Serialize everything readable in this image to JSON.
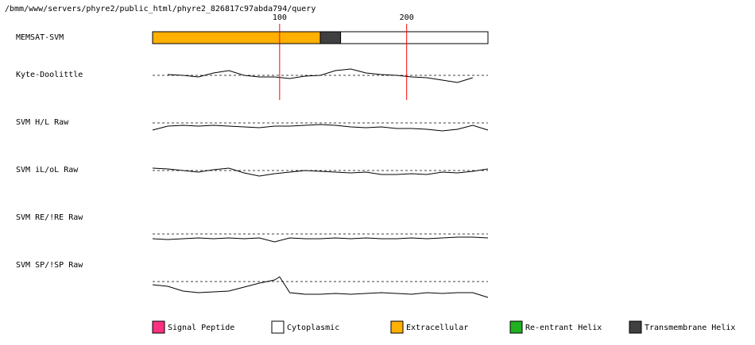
{
  "header": {
    "path": "/bmm/www/servers/phyre2/public_html/phyre2_826817c97abda794/query"
  },
  "axis": {
    "xlim": [
      0,
      264
    ],
    "ticks": [
      100,
      200
    ],
    "tick_color": "#ff0000"
  },
  "topology": {
    "label": "MEMSAT-SVM",
    "segments": [
      {
        "type": "Extracellular",
        "start": 0,
        "end": 132,
        "color": "#ffb000"
      },
      {
        "type": "Transmembrane Helix",
        "start": 132,
        "end": 148,
        "color": "#404040"
      },
      {
        "type": "Cytoplasmic",
        "start": 148,
        "end": 264,
        "color": "#ffffff"
      }
    ]
  },
  "tracks": [
    {
      "label": "Kyte-Doolittle",
      "x": [
        12,
        24,
        36,
        48,
        60,
        72,
        84,
        96,
        108,
        120,
        132,
        144,
        156,
        168,
        180,
        192,
        204,
        216,
        228,
        240,
        252
      ],
      "values": [
        1,
        0,
        -2,
        3,
        6,
        0,
        -2,
        -2,
        -4,
        -1,
        0,
        6,
        8,
        3,
        1,
        0,
        -2,
        -3,
        -6,
        -9,
        -3
      ]
    },
    {
      "label": "SVM H/L Raw",
      "x": [
        0,
        12,
        24,
        36,
        48,
        60,
        72,
        84,
        96,
        108,
        120,
        132,
        144,
        156,
        168,
        180,
        192,
        204,
        216,
        228,
        240,
        252,
        264
      ],
      "values": [
        -9,
        -4,
        -3,
        -4,
        -3,
        -4,
        -5,
        -6,
        -4,
        -4,
        -3,
        -2,
        -3,
        -5,
        -6,
        -5,
        -7,
        -7,
        -8,
        -10,
        -8,
        -3,
        -9
      ]
    },
    {
      "label": "SVM iL/oL Raw",
      "x": [
        0,
        12,
        24,
        36,
        48,
        60,
        72,
        84,
        96,
        108,
        120,
        132,
        144,
        156,
        168,
        180,
        192,
        204,
        216,
        228,
        240,
        252,
        264
      ],
      "values": [
        3,
        2,
        0,
        -2,
        1,
        3,
        -3,
        -7,
        -4,
        -2,
        0,
        -1,
        -2,
        -3,
        -2,
        -5,
        -5,
        -4,
        -5,
        -2,
        -3,
        -1,
        2
      ]
    },
    {
      "label": "SVM RE/!RE Raw",
      "x": [
        0,
        12,
        24,
        36,
        48,
        60,
        72,
        84,
        96,
        108,
        120,
        132,
        144,
        156,
        168,
        180,
        192,
        204,
        216,
        228,
        240,
        252,
        264
      ],
      "values": [
        -6,
        -7,
        -6,
        -5,
        -6,
        -5,
        -6,
        -5,
        -10,
        -5,
        -6,
        -6,
        -5,
        -6,
        -5,
        -6,
        -6,
        -5,
        -6,
        -5,
        -4,
        -4,
        -5
      ]
    },
    {
      "label": "SVM SP/!SP Raw",
      "x": [
        0,
        12,
        24,
        36,
        48,
        60,
        72,
        84,
        96,
        100,
        108,
        120,
        132,
        144,
        156,
        168,
        180,
        192,
        204,
        216,
        228,
        240,
        252,
        264
      ],
      "values": [
        -4,
        -6,
        -12,
        -14,
        -13,
        -12,
        -7,
        -2,
        2,
        6,
        -14,
        -16,
        -16,
        -15,
        -16,
        -15,
        -14,
        -15,
        -16,
        -14,
        -15,
        -14,
        -14,
        -20
      ]
    }
  ],
  "legend": [
    {
      "label": "Signal Peptide",
      "color": "#ff3080"
    },
    {
      "label": "Cytoplasmic",
      "color": "#ffffff"
    },
    {
      "label": "Extracellular",
      "color": "#ffb000"
    },
    {
      "label": "Re-entrant Helix",
      "color": "#20b020"
    },
    {
      "label": "Transmembrane Helix",
      "color": "#404040"
    }
  ]
}
